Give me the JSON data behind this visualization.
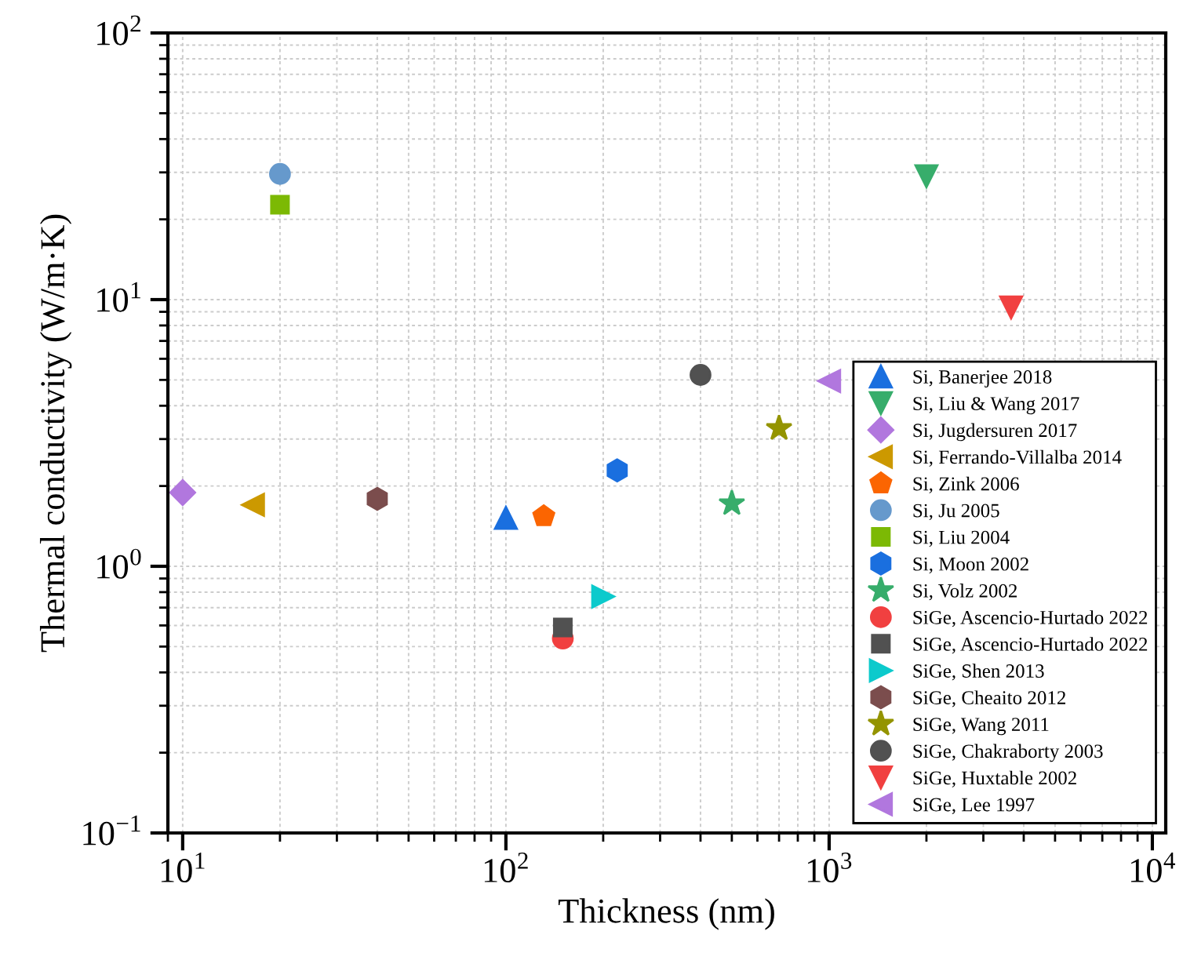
{
  "chart_data": {
    "type": "scatter",
    "xlabel": "Thickness (nm)",
    "ylabel": "Thermal conductivity (W/m·K)",
    "log": "xy",
    "xlim": [
      9,
      11000
    ],
    "ylim": [
      0.1,
      100
    ],
    "xticks": [
      {
        "value": 10,
        "label": "10$^{1}$"
      },
      {
        "value": 100,
        "label": "10$^{2}$"
      },
      {
        "value": 1000,
        "label": "10$^{3}$"
      },
      {
        "value": 10000,
        "label": "10$^{4}$"
      }
    ],
    "yticks": [
      {
        "value": 0.1,
        "label": "10$^{−1}$"
      },
      {
        "value": 1,
        "label": "10$^{0}$"
      },
      {
        "value": 10,
        "label": "10$^{1}$"
      },
      {
        "value": 100,
        "label": "10$^{2}$"
      }
    ],
    "grid": true,
    "legend": "bottom right",
    "series": [
      {
        "name": "Si, Banerjee 2018",
        "color": "#1a6fdf",
        "marker": "triangle",
        "x": [
          100
        ],
        "values": [
          1.52
        ]
      },
      {
        "name": "Si, Liu & Wang 2017",
        "color": "#37ad6b",
        "x": [
          2000
        ],
        "values": [
          29
        ]
      },
      {
        "name": "Si, Jugdersuren 2017",
        "color": "#b177de",
        "marker": "diamond",
        "x": [
          10
        ],
        "values": [
          1.89
        ]
      },
      {
        "name": "Si, Ferrando-Villalba 2014",
        "color": "#cc9900",
        "x": [
          16.5
        ],
        "values": [
          1.7
        ]
      },
      {
        "name": "Si, Zink 2006",
        "color": "#fb6501",
        "x": [
          131
        ],
        "values": [
          1.54
        ]
      },
      {
        "name": "Si, Ju 2005",
        "color": "#6699cc",
        "marker": "circle",
        "x": [
          20
        ],
        "values": [
          29.6
        ]
      },
      {
        "name": "Si, Liu 2004",
        "color": "#7cb904",
        "marker": "square",
        "x": [
          20
        ],
        "values": [
          22.7
        ]
      },
      {
        "name": "Si, Moon 2002",
        "color": "#1a6fdf",
        "x": [
          221
        ],
        "values": [
          2.29
        ]
      },
      {
        "name": "Si, Volz 2002",
        "color": "#37ad6b",
        "marker": "star",
        "x": [
          500
        ],
        "values": [
          1.72
        ]
      },
      {
        "name": "SiGe, Ascencio-Hurtado 2022",
        "color": "#f14040",
        "marker": "circle",
        "x": [
          150
        ],
        "values": [
          0.536
        ]
      },
      {
        "name": "SiGe, Ascencio-Hurtado 2022",
        "color": "#515151",
        "marker": "square",
        "x": [
          150
        ],
        "values": [
          0.59
        ]
      },
      {
        "name": "SiGe, Shen 2013",
        "color": "#0ccacc",
        "x": [
          200
        ],
        "values": [
          0.77
        ]
      },
      {
        "name": "SiGe, Cheaito 2012",
        "color": "#7b4d4d",
        "x": [
          40
        ],
        "values": [
          1.79
        ]
      },
      {
        "name": "SiGe, Wang 2011",
        "color": "#949400",
        "marker": "star",
        "x": [
          700
        ],
        "values": [
          3.29
        ]
      },
      {
        "name": "SiGe, Chakraborty 2003",
        "color": "#515151",
        "marker": "circle",
        "x": [
          400
        ],
        "values": [
          5.22
        ]
      },
      {
        "name": "SiGe, Huxtable 2002",
        "color": "#f14040",
        "x": [
          3656
        ],
        "values": [
          9.35
        ]
      },
      {
        "name": "SiGe, Lee 1997",
        "color": "#b177de",
        "x": [
          1000
        ],
        "values": [
          4.95
        ]
      }
    ]
  }
}
